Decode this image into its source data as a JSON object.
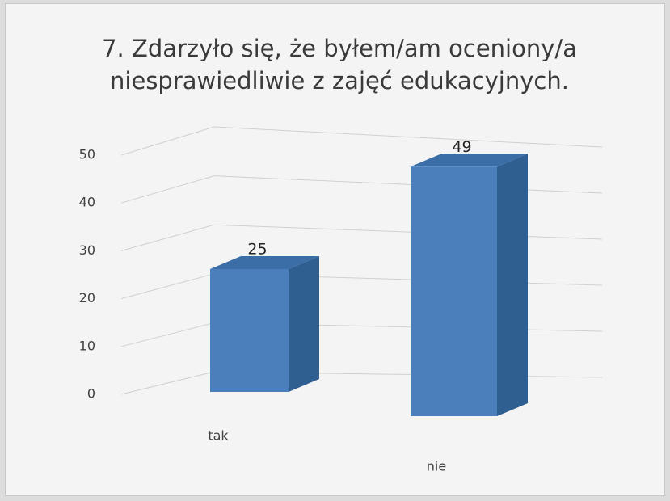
{
  "chart_data": {
    "type": "bar3d",
    "title": "7. Zdarzyło się, że byłem/am oceniony/a niesprawiedliwie z zajęć edukacyjnych.",
    "categories": [
      "tak",
      "nie"
    ],
    "values": [
      25,
      49
    ],
    "color": "#4a7fbc",
    "ylim": [
      0,
      50
    ],
    "yticks": [
      0,
      10,
      20,
      30,
      40,
      50
    ],
    "grid": true
  }
}
